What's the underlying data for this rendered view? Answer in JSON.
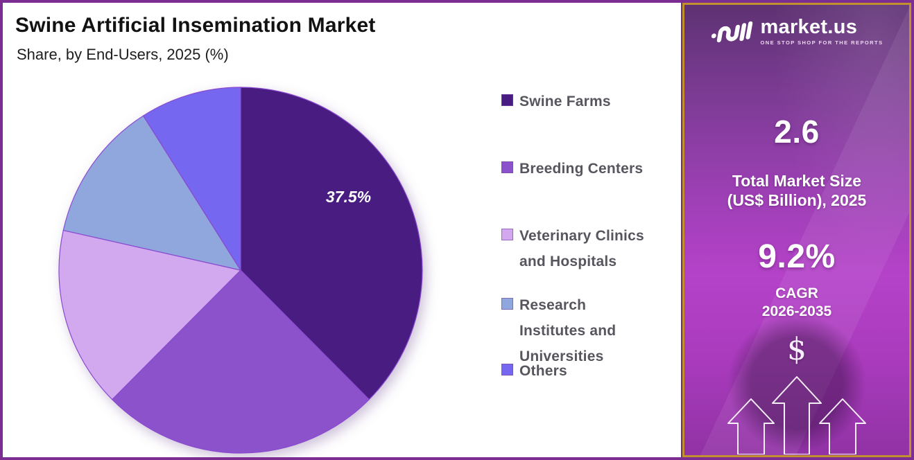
{
  "header": {
    "title": "Swine Artificial Insemination Market",
    "subtitle": "Share, by End-Users, 2025 (%)"
  },
  "chart_data": {
    "type": "pie",
    "title": "Swine Artificial Insemination Market Share, by End-Users, 2025 (%)",
    "labels": [
      "Swine Farms",
      "Breeding Centers",
      "Veterinary Clinics and Hospitals",
      "Research Institutes and Universities",
      "Others"
    ],
    "values": [
      37.5,
      25,
      16,
      12.5,
      9
    ],
    "unit": "%",
    "colors": [
      "#481c80",
      "#8c52cc",
      "#d2a9ee",
      "#8fa7dd",
      "#7667f0"
    ],
    "start_angle_deg": 0,
    "direction": "clockwise",
    "legend_position": "right",
    "data_labels": [
      {
        "index": 0,
        "text": "37.5%",
        "angle_deg": 58,
        "radius_frac": 0.7
      }
    ],
    "note": "Only the 37.5% slice is labeled in the figure; other values estimated from slice angles."
  },
  "legend": {
    "items": [
      {
        "lines": [
          "Swine Farms"
        ]
      },
      {
        "lines": [
          "Breeding Centers"
        ]
      },
      {
        "lines": [
          "Veterinary Clinics",
          "and Hospitals"
        ]
      },
      {
        "lines": [
          "Research",
          "Institutes and",
          "Universities"
        ]
      },
      {
        "lines": [
          "Others"
        ]
      }
    ]
  },
  "side_panel": {
    "brand": "market.us",
    "tagline": "ONE STOP SHOP FOR THE REPORTS",
    "market_size_value": "2.6",
    "market_size_label_line1": "Total Market Size",
    "market_size_label_line2": "(US$ Billion), 2025",
    "cagr_value": "9.2%",
    "cagr_label": "CAGR",
    "cagr_period": "2026-2035",
    "currency_symbol": "$"
  },
  "colors": {
    "frame_border": "#7c2d92",
    "panel_border_gold": "#c1912f",
    "panel_gradient_top": "#5e3273",
    "panel_gradient_mid": "#b542c9",
    "panel_gradient_bottom": "#9132a5",
    "slice_stroke": "#8a4ad0",
    "legend_text": "#57555d",
    "title_text": "#121212"
  }
}
